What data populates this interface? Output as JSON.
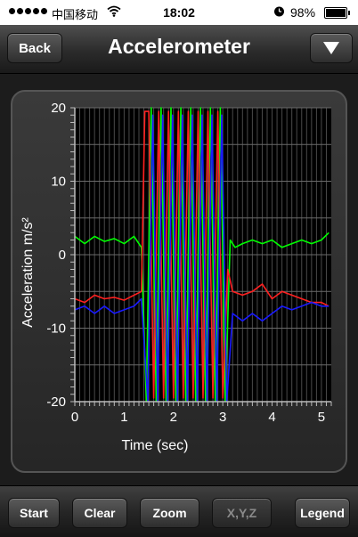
{
  "status_bar": {
    "carrier": "中国移动",
    "time": "18:02",
    "battery_percent": "98%",
    "battery_level": 0.98
  },
  "nav": {
    "back_label": "Back",
    "title": "Accelerometer",
    "menu_icon": "triangle-down-icon"
  },
  "chart_data": {
    "type": "line",
    "xlabel": "Time (sec)",
    "ylabel": "Acceleration m/s²",
    "xlim": [
      0,
      5.2
    ],
    "ylim": [
      -20,
      20
    ],
    "x_ticks": [
      "0",
      "1",
      "2",
      "3",
      "4",
      "5"
    ],
    "y_ticks": [
      "20",
      "10",
      "0",
      "-10",
      "-20"
    ],
    "grid": true,
    "series": [
      {
        "color": "#00ff00",
        "x": [
          0,
          0.2,
          0.4,
          0.6,
          0.8,
          1.0,
          1.2,
          1.35,
          1.45,
          1.55,
          1.65,
          1.75,
          1.85,
          1.95,
          2.05,
          2.15,
          2.25,
          2.35,
          2.45,
          2.55,
          2.65,
          2.75,
          2.85,
          2.95,
          3.05,
          3.15,
          3.25,
          3.4,
          3.6,
          3.8,
          4.0,
          4.2,
          4.4,
          4.6,
          4.8,
          5.0,
          5.15
        ],
        "y": [
          2.5,
          1.5,
          2.5,
          1.8,
          2.2,
          1.5,
          2.5,
          1.0,
          -20,
          20,
          -20,
          20,
          -20,
          20,
          -20,
          20,
          -20,
          20,
          -20,
          20,
          -20,
          20,
          -20,
          20,
          -20,
          2.0,
          1.0,
          1.5,
          2.0,
          1.5,
          2.0,
          1.0,
          1.5,
          2.0,
          1.5,
          2.0,
          3.0
        ]
      },
      {
        "color": "#ff2020",
        "x": [
          0,
          0.2,
          0.4,
          0.6,
          0.8,
          1.0,
          1.2,
          1.35,
          1.42,
          1.5,
          1.6,
          1.7,
          1.8,
          1.9,
          2.0,
          2.1,
          2.2,
          2.3,
          2.4,
          2.5,
          2.6,
          2.7,
          2.8,
          2.9,
          3.0,
          3.1,
          3.2,
          3.4,
          3.6,
          3.8,
          4.0,
          4.2,
          4.4,
          4.6,
          4.8,
          5.0,
          5.15
        ],
        "y": [
          -6,
          -6.5,
          -5.5,
          -6,
          -5.8,
          -6.2,
          -5.5,
          -5,
          19.5,
          19.5,
          -19.5,
          19.5,
          -19.5,
          19.5,
          -19.5,
          19.5,
          -19.5,
          19.5,
          -19.5,
          19.5,
          -19.5,
          19.5,
          -19.5,
          19.5,
          -19.5,
          -2,
          -5,
          -5.5,
          -5,
          -4,
          -6,
          -5,
          -5.5,
          -6,
          -6.5,
          -6.5,
          -7
        ]
      },
      {
        "color": "#1a1aff",
        "x": [
          0,
          0.2,
          0.4,
          0.6,
          0.8,
          1.0,
          1.2,
          1.35,
          1.48,
          1.58,
          1.68,
          1.78,
          1.88,
          1.98,
          2.08,
          2.18,
          2.28,
          2.38,
          2.48,
          2.58,
          2.68,
          2.78,
          2.88,
          2.98,
          3.08,
          3.2,
          3.4,
          3.6,
          3.8,
          4.0,
          4.2,
          4.4,
          4.6,
          4.8,
          5.0,
          5.15
        ],
        "y": [
          -7.5,
          -7,
          -8,
          -7,
          -8,
          -7.5,
          -7,
          -6,
          -20,
          19,
          -20,
          19,
          -20,
          19,
          -20,
          19,
          -20,
          19,
          -20,
          19,
          -20,
          19,
          -20,
          19,
          -20,
          -8,
          -9,
          -8,
          -9,
          -8,
          -7,
          -7.5,
          -7,
          -6.5,
          -7,
          -7
        ]
      }
    ]
  },
  "toolbar": {
    "start_label": "Start",
    "clear_label": "Clear",
    "zoom_label": "Zoom",
    "xyz_label": "X,Y,Z",
    "legend_label": "Legend"
  }
}
